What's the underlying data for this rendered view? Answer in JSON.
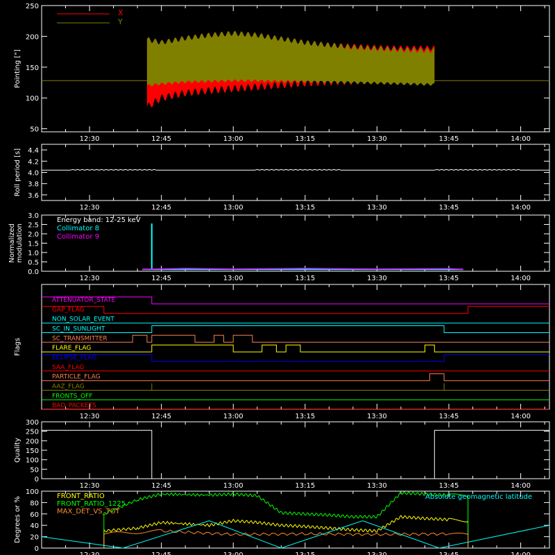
{
  "colors": {
    "background": "#000000",
    "axes": "#ffffff",
    "x_red": "#ff0000",
    "y_olive": "#808000",
    "cyan": "#00ffff",
    "magenta": "#ff00ff",
    "yellow": "#ffff00",
    "green": "#00ff00",
    "orange": "#ff8c2a",
    "blue": "#0000ff",
    "salmon": "#ff7f50"
  },
  "chart_data": [
    {
      "id": "pointing",
      "type": "area",
      "title": "",
      "xlabel": "",
      "ylabel": "Pointing [\"]",
      "xlim": [
        "12:20",
        "14:06"
      ],
      "ylim": [
        45,
        250
      ],
      "xticks": [
        "12:30",
        "12:45",
        "13:00",
        "13:15",
        "13:30",
        "13:45",
        "14:00"
      ],
      "yticks": [
        50,
        100,
        150,
        200,
        250
      ],
      "legend_position": "top-left",
      "reference_line": 128,
      "series": [
        {
          "name": "X",
          "color": "#ff0000",
          "x": [
            "12:42",
            "12:45",
            "12:50",
            "12:55",
            "13:00",
            "13:05",
            "13:10",
            "13:15",
            "13:20",
            "13:25",
            "13:30",
            "13:35",
            "13:40",
            "13:42"
          ],
          "min": [
            85,
            100,
            108,
            112,
            115,
            118,
            121,
            124,
            126,
            127,
            128,
            128,
            128,
            128
          ],
          "max": [
            195,
            190,
            197,
            202,
            205,
            202,
            196,
            190,
            186,
            184,
            182,
            181,
            181,
            181
          ]
        },
        {
          "name": "Y",
          "color": "#808000",
          "x": [
            "12:42",
            "12:45",
            "12:50",
            "12:55",
            "13:00",
            "13:05",
            "13:10",
            "13:15",
            "13:20",
            "13:25",
            "13:30",
            "13:35",
            "13:40",
            "13:42"
          ],
          "min": [
            120,
            123,
            126,
            127,
            128,
            128,
            127,
            127,
            126,
            125,
            124,
            123,
            122,
            122
          ],
          "max": [
            195,
            190,
            197,
            202,
            205,
            202,
            196,
            190,
            186,
            182,
            180,
            178,
            177,
            177
          ]
        }
      ]
    },
    {
      "id": "roll_period",
      "type": "line",
      "ylabel": "Roll period [s]",
      "xlim": [
        "12:20",
        "14:06"
      ],
      "ylim": [
        3.5,
        4.5
      ],
      "xticks": [
        "12:30",
        "12:45",
        "13:00",
        "13:15",
        "13:30",
        "13:45",
        "14:00"
      ],
      "yticks": [
        "3.6",
        "3.8",
        "4.0",
        "4.2",
        "4.4"
      ],
      "series": [
        {
          "name": "",
          "color": "#ffffff",
          "x": [
            "12:20",
            "14:06"
          ],
          "y": [
            4.04,
            4.04
          ]
        }
      ]
    },
    {
      "id": "modulation",
      "type": "line",
      "ylabel": [
        "Normalized",
        "modulation"
      ],
      "xlim": [
        "12:20",
        "14:06"
      ],
      "ylim": [
        0,
        3.0
      ],
      "xticks": [
        "12:30",
        "12:45",
        "13:00",
        "13:15",
        "13:30",
        "13:45",
        "14:00"
      ],
      "yticks": [
        "0.0",
        "0.5",
        "1.0",
        "1.5",
        "2.0",
        "2.5",
        "3.0"
      ],
      "annotation": "Energy band: 12-25 keV",
      "series": [
        {
          "name": "Collimator 8",
          "color": "#00ffff",
          "x": [
            "12:41",
            "12:43",
            "12:43",
            "12:43",
            "13:00",
            "13:30",
            "13:48"
          ],
          "y": [
            0.1,
            0.1,
            2.55,
            0.1,
            0.1,
            0.1,
            0.1
          ]
        },
        {
          "name": "Collimator 9",
          "color": "#ff00ff",
          "x": [
            "12:41",
            "12:50",
            "13:00",
            "13:15",
            "13:30",
            "13:45",
            "13:48"
          ],
          "y": [
            0.1,
            0.15,
            0.12,
            0.15,
            0.12,
            0.14,
            0.1
          ]
        }
      ]
    },
    {
      "id": "flags",
      "type": "line",
      "ylabel": "Flags",
      "xlim": [
        "12:20",
        "14:06"
      ],
      "xticks": [
        "12:30",
        "12:45",
        "13:00",
        "13:15",
        "13:30",
        "13:45",
        "14:00"
      ],
      "flags": [
        {
          "name": "ATTENUATOR_STATE",
          "color": "#ff00ff",
          "base": "high",
          "segments": [
            [
              "12:20",
              "12:43",
              1
            ],
            [
              "12:43",
              "14:06",
              0
            ]
          ]
        },
        {
          "name": "GAP_FLAG",
          "color": "#ff0000",
          "segments": [
            [
              "12:20",
              "12:33",
              1
            ],
            [
              "12:33",
              "13:49",
              0
            ],
            [
              "13:49",
              "14:06",
              1
            ]
          ]
        },
        {
          "name": "NON_SOLAR_EVENT",
          "color": "#00ffff",
          "segments": [
            [
              "12:20",
              "14:06",
              0
            ]
          ]
        },
        {
          "name": "SC_IN_SUNLIGHT",
          "color": "#00ffff",
          "segments": [
            [
              "12:20",
              "12:43",
              0
            ],
            [
              "12:43",
              "13:44",
              1
            ],
            [
              "13:44",
              "14:06",
              0
            ]
          ]
        },
        {
          "name": "SC_TRANSMITTER",
          "color": "#ff7f50",
          "segments": [
            [
              "12:20",
              "12:39",
              0
            ],
            [
              "12:39",
              "12:42",
              1
            ],
            [
              "12:42",
              "12:43",
              0
            ],
            [
              "12:43",
              "12:52",
              1
            ],
            [
              "12:52",
              "12:56",
              0
            ],
            [
              "12:56",
              "12:58",
              1
            ],
            [
              "12:58",
              "13:00",
              0
            ],
            [
              "13:00",
              "13:04",
              1
            ],
            [
              "13:04",
              "14:06",
              0
            ]
          ]
        },
        {
          "name": "FLARE_FLAG",
          "color": "#ffff00",
          "segments": [
            [
              "12:20",
              "12:43",
              0
            ],
            [
              "12:43",
              "13:00",
              1
            ],
            [
              "13:00",
              "13:06",
              0
            ],
            [
              "13:06",
              "13:09",
              1
            ],
            [
              "13:09",
              "13:11",
              0
            ],
            [
              "13:11",
              "13:14",
              1
            ],
            [
              "13:14",
              "13:40",
              0
            ],
            [
              "13:40",
              "13:42",
              1
            ],
            [
              "13:42",
              "14:06",
              0
            ]
          ]
        },
        {
          "name": "ECLIPSE_FLAG",
          "color": "#0000ff",
          "segments": [
            [
              "12:20",
              "12:43",
              1
            ],
            [
              "12:43",
              "13:44",
              0
            ],
            [
              "13:44",
              "14:06",
              1
            ]
          ]
        },
        {
          "name": "SAA_FLAG",
          "color": "#ff0000",
          "segments": [
            [
              "12:20",
              "14:06",
              0
            ]
          ]
        },
        {
          "name": "PARTICLE_FLAG",
          "color": "#ff7f50",
          "segments": [
            [
              "12:20",
              "13:41",
              0
            ],
            [
              "13:41",
              "13:44",
              1
            ],
            [
              "13:44",
              "14:06",
              0
            ]
          ]
        },
        {
          "name": "AAZ_FLAG",
          "color": "#808000",
          "segments": [
            [
              "12:20",
              "12:43",
              0
            ],
            [
              "12:43",
              "12:43",
              1
            ],
            [
              "12:43",
              "13:44",
              0
            ],
            [
              "13:44",
              "13:44",
              1
            ],
            [
              "13:44",
              "14:06",
              0
            ]
          ]
        },
        {
          "name": "FRONTS_OFF",
          "color": "#00ff00",
          "segments": [
            [
              "12:20",
              "14:06",
              0
            ]
          ]
        },
        {
          "name": "BAD_PACKETS",
          "color": "#ff0000",
          "segments": [
            [
              "12:20",
              "14:06",
              0
            ]
          ]
        }
      ]
    },
    {
      "id": "quality",
      "type": "line",
      "ylabel": "Quality",
      "xlim": [
        "12:20",
        "14:06"
      ],
      "ylim": [
        0,
        300
      ],
      "xticks": [
        "12:30",
        "12:45",
        "13:00",
        "13:15",
        "13:30",
        "13:45",
        "14:00"
      ],
      "yticks": [
        0,
        50,
        100,
        150,
        200,
        250,
        300
      ],
      "series": [
        {
          "name": "",
          "color": "#ffffff",
          "x": [
            "12:20",
            "12:43",
            "12:43",
            "13:42",
            "13:42",
            "14:06"
          ],
          "y": [
            255,
            255,
            0,
            0,
            255,
            255
          ]
        }
      ]
    },
    {
      "id": "ratios",
      "type": "line",
      "ylabel": "Degrees or %",
      "xlim": [
        "12:20",
        "14:06"
      ],
      "ylim": [
        0,
        100
      ],
      "xticks": [
        "12:30",
        "12:45",
        "13:00",
        "13:15",
        "13:30",
        "13:45",
        "14:00"
      ],
      "yticks": [
        0,
        20,
        40,
        60,
        80,
        100
      ],
      "annotation": "Absolute geomagnetic latitude",
      "series": [
        {
          "name": "FRONT_RATIO",
          "color": "#ffff00",
          "x": [
            "12:33",
            "12:33",
            "12:40",
            "12:45",
            "12:55",
            "13:00",
            "13:05",
            "13:10",
            "13:15",
            "13:20",
            "13:25",
            "13:30",
            "13:35",
            "13:40",
            "13:45",
            "13:49",
            "13:49"
          ],
          "y": [
            0,
            30,
            35,
            45,
            40,
            48,
            45,
            40,
            38,
            35,
            32,
            30,
            55,
            52,
            50,
            48,
            0
          ]
        },
        {
          "name": "FRONT_RATIO_1225",
          "color": "#00ff00",
          "x": [
            "12:33",
            "12:33",
            "12:40",
            "12:45",
            "12:55",
            "13:00",
            "13:05",
            "13:10",
            "13:15",
            "13:20",
            "13:25",
            "13:30",
            "13:35",
            "13:40",
            "13:45",
            "13:49",
            "13:49"
          ],
          "y": [
            0,
            60,
            85,
            95,
            93,
            95,
            92,
            62,
            60,
            58,
            55,
            55,
            97,
            95,
            93,
            92,
            0
          ]
        },
        {
          "name": "MAX_DET_VS_TOT",
          "color": "#ff8c2a",
          "x": [
            "12:33",
            "12:33",
            "12:45",
            "13:00",
            "13:15",
            "13:30",
            "13:45",
            "13:49",
            "13:49"
          ],
          "y": [
            0,
            25,
            30,
            24,
            25,
            24,
            25,
            23,
            0
          ]
        },
        {
          "name": "Absolute geomagnetic latitude",
          "color": "#00ffff",
          "x": [
            "12:20",
            "12:37",
            "12:55",
            "13:10",
            "13:27",
            "13:43",
            "14:06"
          ],
          "y": [
            20,
            0,
            48,
            0,
            48,
            0,
            40
          ]
        }
      ]
    }
  ]
}
